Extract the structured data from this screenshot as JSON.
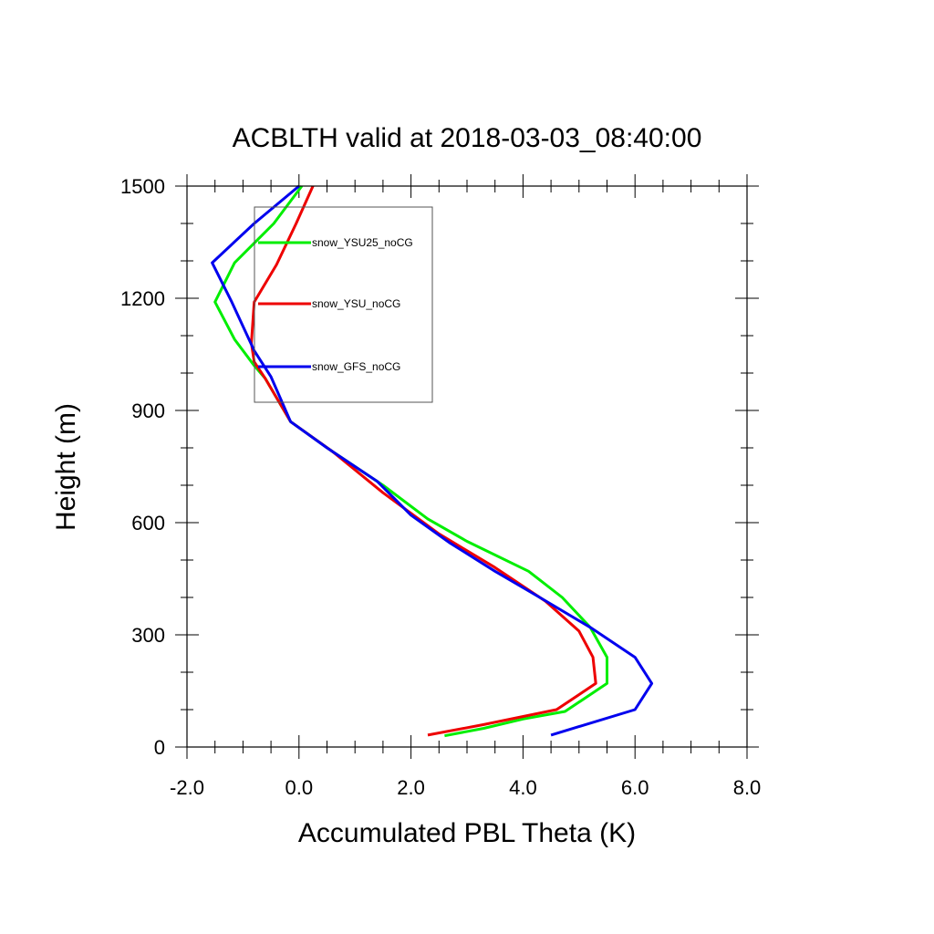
{
  "chart_data": {
    "type": "line",
    "title": "ACBLTH valid at 2018-03-03_08:40:00",
    "xlabel": "Accumulated PBL Theta (K)",
    "ylabel": "Height (m)",
    "xlim": [
      -2.0,
      8.0
    ],
    "ylim": [
      0,
      1500
    ],
    "xticks": [
      -2.0,
      0.0,
      2.0,
      4.0,
      6.0,
      8.0
    ],
    "xtick_labels": [
      "-2.0",
      "0.0",
      "2.0",
      "4.0",
      "6.0",
      "8.0"
    ],
    "yticks": [
      0,
      300,
      600,
      900,
      1200,
      1500
    ],
    "ytick_labels": [
      "0",
      "300",
      "600",
      "900",
      "1200",
      "1500"
    ],
    "grid": false,
    "legend_position": "top-left",
    "series": [
      {
        "name": "snow_YSU25_noCG",
        "color": "#00ee00",
        "points": [
          [
            2.6,
            30
          ],
          [
            3.3,
            50
          ],
          [
            4.0,
            75
          ],
          [
            4.75,
            95
          ],
          [
            5.5,
            170
          ],
          [
            5.5,
            240
          ],
          [
            5.2,
            320
          ],
          [
            4.7,
            400
          ],
          [
            4.1,
            470
          ],
          [
            3.0,
            550
          ],
          [
            2.3,
            610
          ],
          [
            1.5,
            700
          ],
          [
            0.6,
            790
          ],
          [
            -0.15,
            870
          ],
          [
            -0.6,
            985
          ],
          [
            -0.8,
            1020
          ],
          [
            -1.15,
            1090
          ],
          [
            -1.5,
            1190
          ],
          [
            -1.15,
            1295
          ],
          [
            -0.45,
            1400
          ],
          [
            0.05,
            1500
          ]
        ]
      },
      {
        "name": "snow_YSU_noCG",
        "color": "#ee0000",
        "points": [
          [
            2.3,
            32
          ],
          [
            3.3,
            60
          ],
          [
            4.6,
            100
          ],
          [
            5.3,
            170
          ],
          [
            5.25,
            240
          ],
          [
            5.0,
            310
          ],
          [
            4.4,
            390
          ],
          [
            3.5,
            480
          ],
          [
            2.5,
            570
          ],
          [
            1.5,
            680
          ],
          [
            0.6,
            790
          ],
          [
            -0.15,
            870
          ],
          [
            -0.6,
            985
          ],
          [
            -0.8,
            1030
          ],
          [
            -0.85,
            1080
          ],
          [
            -0.8,
            1190
          ],
          [
            -0.4,
            1290
          ],
          [
            -0.05,
            1400
          ],
          [
            0.25,
            1500
          ]
        ]
      },
      {
        "name": "snow_GFS_noCG",
        "color": "#0000ee",
        "points": [
          [
            4.5,
            32
          ],
          [
            6.0,
            100
          ],
          [
            6.3,
            170
          ],
          [
            6.0,
            240
          ],
          [
            5.2,
            320
          ],
          [
            4.3,
            400
          ],
          [
            3.5,
            470
          ],
          [
            2.7,
            545
          ],
          [
            2.0,
            620
          ],
          [
            1.4,
            710
          ],
          [
            0.5,
            800
          ],
          [
            -0.15,
            870
          ],
          [
            -0.5,
            990
          ],
          [
            -0.8,
            1060
          ],
          [
            -1.2,
            1190
          ],
          [
            -1.55,
            1295
          ],
          [
            -0.8,
            1400
          ],
          [
            0.0,
            1500
          ]
        ]
      }
    ]
  }
}
